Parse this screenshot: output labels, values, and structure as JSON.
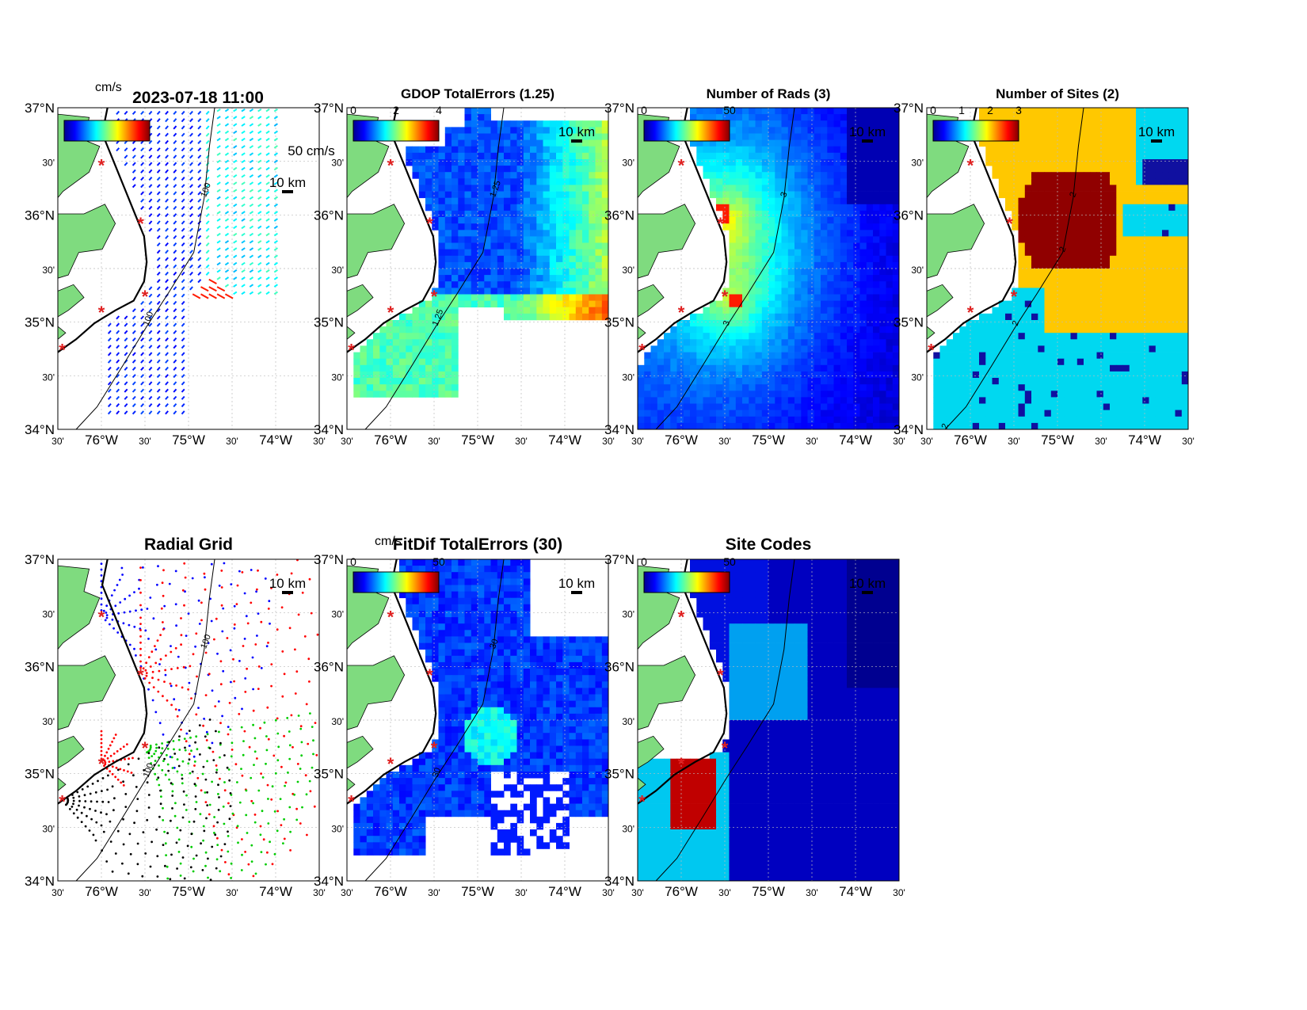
{
  "header": {
    "time_label": "2023-07-18 11:00",
    "units_top": "cm/s"
  },
  "colors": {
    "land": "#7fdb7f",
    "site_marker": "#e02020",
    "contour": "#000000"
  },
  "axes": {
    "lat_labels": [
      "37°N",
      "30'",
      "36°N",
      "30'",
      "35°N",
      "30'",
      "34°N"
    ],
    "lon_labels": [
      "30'",
      "76°W",
      "30'",
      "75°W",
      "30'",
      "74°W",
      "30'"
    ],
    "lat_range": [
      34,
      37
    ],
    "lon_range": [
      -76.5,
      -73.5
    ]
  },
  "sites": [
    {
      "lon": -76.0,
      "lat": 36.47
    },
    {
      "lon": -75.55,
      "lat": 35.93
    },
    {
      "lon": -75.5,
      "lat": 35.25
    },
    {
      "lon": -76.0,
      "lat": 35.1
    },
    {
      "lon": -76.45,
      "lat": 34.75
    }
  ],
  "panels": [
    {
      "id": "total-velocity",
      "title": "",
      "colorbar": true,
      "cbar_ticks": [],
      "scale_label": "10 km",
      "vector_scale_label": "50 cm/s",
      "overlay": "vectors",
      "contour_labels": [
        "100",
        "100"
      ]
    },
    {
      "id": "gdop-total-errors",
      "title": "GDOP TotalErrors (1.25)",
      "colorbar": true,
      "cbar_ticks": [
        "0",
        "2",
        "4"
      ],
      "scale_label": "10 km",
      "overlay": "grid-gdop",
      "contour_labels": [
        "1.25",
        "1.25"
      ]
    },
    {
      "id": "number-of-rads",
      "title": "Number of Rads (3)",
      "colorbar": true,
      "cbar_ticks": [
        "0",
        "50"
      ],
      "scale_label": "10 km",
      "overlay": "grid-rads",
      "contour_labels": [
        "3",
        "3"
      ]
    },
    {
      "id": "number-of-sites",
      "title": "Number of Sites (2)",
      "colorbar": true,
      "cbar_ticks": [
        "0",
        "1",
        "2",
        "3"
      ],
      "scale_label": "10 km",
      "overlay": "grid-sites",
      "contour_labels": [
        "2",
        "2",
        "2",
        "2"
      ]
    },
    {
      "id": "radial-grid",
      "title": "Radial Grid",
      "colorbar": false,
      "cbar_ticks": [],
      "scale_label": "10 km",
      "overlay": "radial-grid",
      "contour_labels": [
        "100",
        "100"
      ]
    },
    {
      "id": "fitdif-total-errors",
      "title": "FitDif TotalErrors (30)",
      "units_label": "cm/s",
      "colorbar": true,
      "cbar_ticks": [
        "0",
        "50"
      ],
      "scale_label": "10 km",
      "overlay": "grid-fitdif",
      "contour_labels": [
        "30",
        "30"
      ]
    },
    {
      "id": "site-codes",
      "title": "Site Codes",
      "colorbar": true,
      "cbar_ticks": [
        "0",
        "50"
      ],
      "scale_label": "10 km",
      "overlay": "grid-codes",
      "contour_labels": []
    }
  ]
}
